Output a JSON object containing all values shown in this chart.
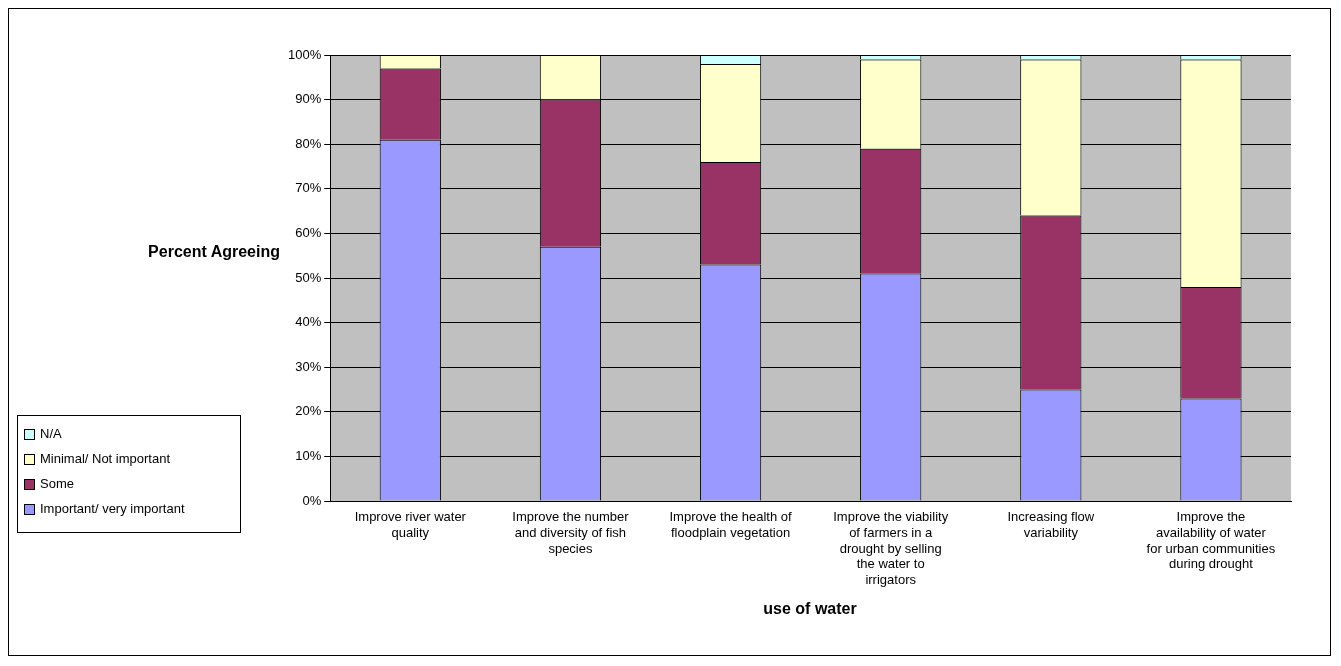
{
  "chart_data": {
    "type": "bar",
    "stacked": true,
    "xlabel": "use of water",
    "ylabel": "Percent Agreeing",
    "categories": [
      "Improve river water quality",
      "Improve the number and diversity of fish species",
      "Improve the health of floodplain vegetation",
      "Improve the viability of farmers in a drought by selling the water to irrigators",
      "Increasing flow variability",
      "Improve the availability of water for urban communities during drought"
    ],
    "series": [
      {
        "name": "Important/ very important",
        "color": "#9999ff",
        "values": [
          81,
          57,
          53,
          51,
          25,
          23
        ]
      },
      {
        "name": "Some",
        "color": "#993366",
        "values": [
          16,
          33,
          23,
          28,
          39,
          25
        ]
      },
      {
        "name": "Minimal/ Not important",
        "color": "#ffffcc",
        "values": [
          3,
          10,
          22,
          20,
          35,
          51
        ]
      },
      {
        "name": "N/A",
        "color": "#ccffff",
        "values": [
          0,
          0,
          2,
          1,
          1,
          1
        ]
      }
    ],
    "ylim": [
      0,
      100
    ],
    "yticks": [
      {
        "value": 0,
        "label": "0%"
      },
      {
        "value": 10,
        "label": "10%"
      },
      {
        "value": 20,
        "label": "20%"
      },
      {
        "value": 30,
        "label": "30%"
      },
      {
        "value": 40,
        "label": "40%"
      },
      {
        "value": 50,
        "label": "50%"
      },
      {
        "value": 60,
        "label": "60%"
      },
      {
        "value": 70,
        "label": "70%"
      },
      {
        "value": 80,
        "label": "80%"
      },
      {
        "value": 90,
        "label": "90%"
      },
      {
        "value": 100,
        "label": "100%"
      }
    ],
    "grid": "y",
    "legend": "left"
  }
}
